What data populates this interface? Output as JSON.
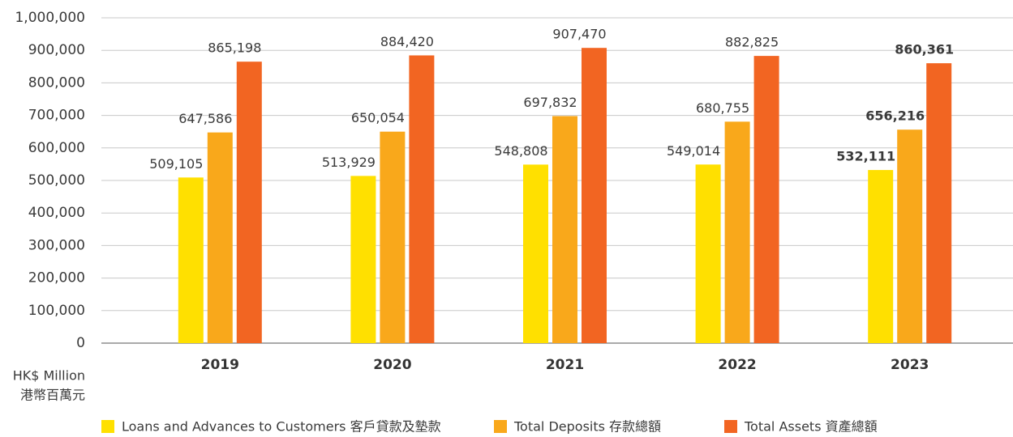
{
  "chart_data": {
    "type": "bar",
    "categories": [
      "2019",
      "2020",
      "2021",
      "2022",
      "2023"
    ],
    "series": [
      {
        "name": "Loans and Advances to Customers 客戶貸款及墊款",
        "color": "#ffe000",
        "values": [
          509105,
          513929,
          548808,
          549014,
          532111
        ],
        "value_labels": [
          "509,105",
          "513,929",
          "548,808",
          "549,014",
          "532,111"
        ]
      },
      {
        "name": "Total Deposits 存款總額",
        "color": "#f9a81b",
        "values": [
          647586,
          650054,
          697832,
          680755,
          656216
        ],
        "value_labels": [
          "647,586",
          "650,054",
          "697,832",
          "680,755",
          "656,216"
        ]
      },
      {
        "name": "Total Assets 資產總額",
        "color": "#f26522",
        "values": [
          865198,
          884420,
          907470,
          882825,
          860361
        ],
        "value_labels": [
          "865,198",
          "884,420",
          "907,470",
          "882,825",
          "860,361"
        ]
      }
    ],
    "y_unit_label": [
      "HK$ Million",
      "港幣百萬元"
    ],
    "ylim": [
      0,
      1000000
    ],
    "yticks": [
      0,
      {
        "value": 100000,
        "label": "100,000"
      },
      {
        "value": 200000,
        "label": "200,000"
      },
      {
        "value": 300000,
        "label": "300,000"
      },
      {
        "value": 400000,
        "label": "400,000"
      },
      {
        "value": 500000,
        "label": "500,000"
      },
      {
        "value": 600000,
        "label": "600,000"
      },
      {
        "value": 700000,
        "label": "700,000"
      },
      {
        "value": 800000,
        "label": "800,000"
      },
      {
        "value": 900000,
        "label": "900,000"
      },
      {
        "value": 1000000,
        "label": "1,000,000"
      }
    ],
    "grid": true,
    "legend": "bottom"
  }
}
